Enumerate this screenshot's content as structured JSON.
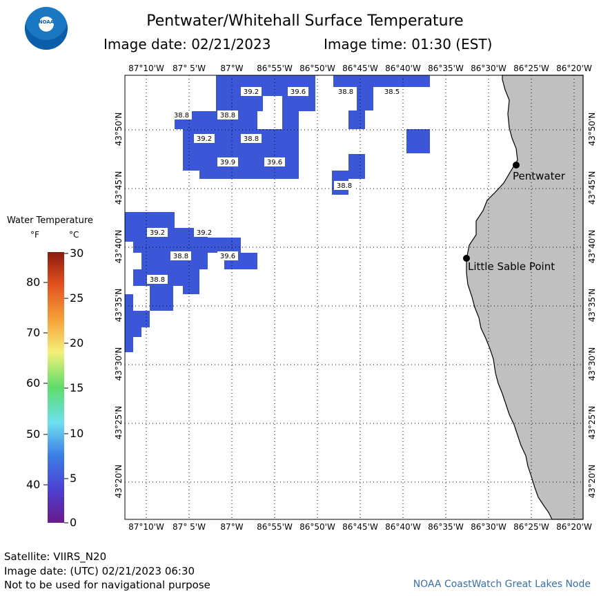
{
  "header": {
    "title": "Pentwater/Whitehall Surface Temperature",
    "image_date": "Image date: 02/21/2023",
    "image_time": "Image time: 01:30 (EST)",
    "logo_text": "NOAA"
  },
  "map": {
    "lon_labels": [
      "87°10'W",
      "87° 5'W",
      "87°W",
      "86°55'W",
      "86°50'W",
      "86°45'W",
      "86°40'W",
      "86°35'W",
      "86°30'W",
      "86°25'W",
      "86°20'W"
    ],
    "lat_labels": [
      "43°50'N",
      "43°45'N",
      "43°40'N",
      "43°35'N",
      "43°30'N",
      "43°25'N",
      "43°20'N"
    ],
    "places": [
      {
        "name": "Pentwater"
      },
      {
        "name": "Little Sable Point"
      }
    ],
    "temp_labels": [
      "39.2",
      "39.6",
      "38.8",
      "38.5",
      "38.8",
      "38.8",
      "39.2",
      "38.8",
      "39.9",
      "39.6",
      "38.8",
      "39.2",
      "39.2",
      "38.8",
      "39.6",
      "38.8"
    ],
    "colors": {
      "water_cold": "#3b56d6",
      "land": "#c0c0c0",
      "grid": "#000000"
    }
  },
  "legend": {
    "title": "Water Temperature",
    "unit_f": "°F",
    "unit_c": "°C",
    "f_ticks": [
      "80",
      "70",
      "60",
      "50",
      "40"
    ],
    "c_ticks": [
      "30",
      "25",
      "20",
      "15",
      "10",
      "5",
      "0"
    ]
  },
  "footer": {
    "satellite": "Satellite: VIIRS_N20",
    "utc_date": "Image date: (UTC) 02/21/2023  06:30",
    "disclaimer": "Not to be used for navigational purpose",
    "credit": "NOAA CoastWatch Great Lakes Node"
  }
}
